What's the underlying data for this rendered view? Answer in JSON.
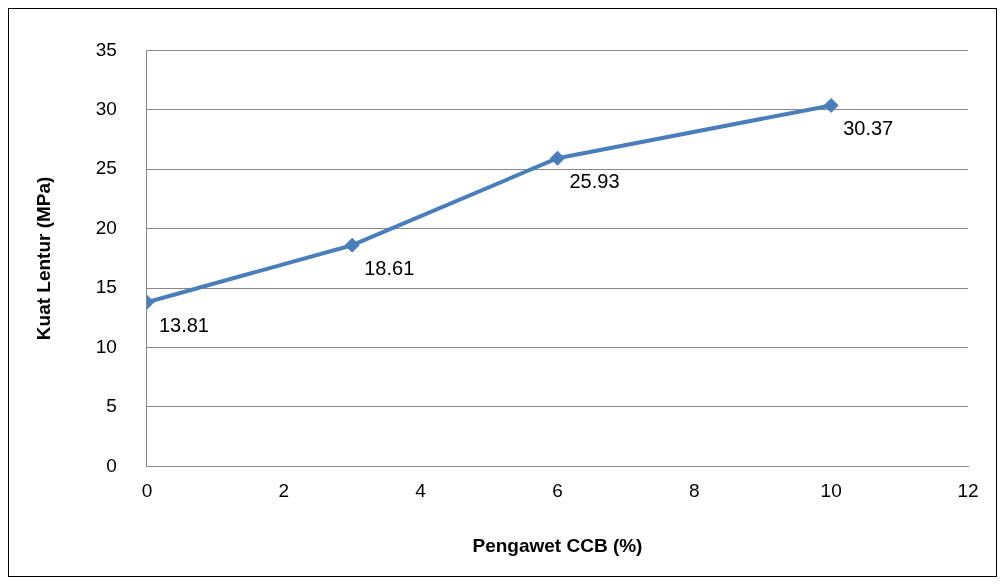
{
  "chart_data": {
    "type": "line",
    "xlabel": "Pengawet CCB (%)",
    "ylabel": "Kuat Lentur (MPa)",
    "x": [
      0,
      3,
      6,
      10
    ],
    "series": [
      {
        "color": "#4a7ebb",
        "values": [
          13.81,
          18.61,
          25.93,
          30.37
        ]
      }
    ],
    "xlim": [
      0,
      12
    ],
    "xticks": [
      0,
      2,
      4,
      6,
      8,
      10,
      12
    ],
    "ylim": [
      0,
      35
    ],
    "yticks": [
      0,
      5,
      10,
      15,
      20,
      25,
      30,
      35
    ],
    "grid": "y",
    "marker": "diamond",
    "line_style": "solid",
    "data_labels": true,
    "legend": false
  }
}
